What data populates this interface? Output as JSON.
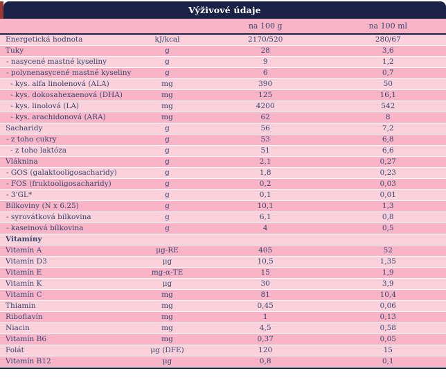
{
  "table": {
    "title": "Výživové údaje",
    "columns": {
      "per100g": "na 100 g",
      "per100ml": "na 100 ml"
    },
    "colors": {
      "navy": "#1a2248",
      "pink_dark": "#f9b4c7",
      "pink_light": "#fbd1db",
      "text": "#35466f",
      "red_edge": "#993832",
      "title_text": "#ffffff"
    },
    "rows": [
      {
        "label": "Energetická hodnota",
        "indent": 0,
        "unit": "kJ/kcal",
        "per100g": "2170/520",
        "per100ml": "280/67"
      },
      {
        "label": "Tuky",
        "indent": 0,
        "unit": "g",
        "per100g": "28",
        "per100ml": "3,6"
      },
      {
        "label": "- nasycené mastné kyseliny",
        "indent": 1,
        "unit": "g",
        "per100g": "9",
        "per100ml": "1,2"
      },
      {
        "label": "- polynenasycené mastné kyseliny",
        "indent": 1,
        "unit": "g",
        "per100g": "6",
        "per100ml": "0,7"
      },
      {
        "label": "- kys. alfa linolenová (ALA)",
        "indent": 2,
        "unit": "mg",
        "per100g": "390",
        "per100ml": "50"
      },
      {
        "label": "- kys. dokosahexaenová (DHA)",
        "indent": 2,
        "unit": "mg",
        "per100g": "125",
        "per100ml": "16,1"
      },
      {
        "label": "- kys. linolová (LA)",
        "indent": 2,
        "unit": "mg",
        "per100g": "4200",
        "per100ml": "542"
      },
      {
        "label": "- kys. arachidonová (ARA)",
        "indent": 2,
        "unit": "mg",
        "per100g": "62",
        "per100ml": "8"
      },
      {
        "label": "Sacharidy",
        "indent": 0,
        "unit": "g",
        "per100g": "56",
        "per100ml": "7,2"
      },
      {
        "label": "- z toho cukry",
        "indent": 1,
        "unit": "g",
        "per100g": "53",
        "per100ml": "6,8"
      },
      {
        "label": "- z toho laktóza",
        "indent": 2,
        "unit": "g",
        "per100g": "51",
        "per100ml": "6,6"
      },
      {
        "label": "Vláknina",
        "indent": 0,
        "unit": "g",
        "per100g": "2,1",
        "per100ml": "0,27"
      },
      {
        "label": "- GOS (galaktooligosacharidy)",
        "indent": 1,
        "unit": "g",
        "per100g": "1,8",
        "per100ml": "0,23"
      },
      {
        "label": "- FOS (fruktooligosacharidy)",
        "indent": 1,
        "unit": "g",
        "per100g": "0,2",
        "per100ml": "0,03"
      },
      {
        "label": "- 3'GL*",
        "indent": 1,
        "unit": "g",
        "per100g": "0,1",
        "per100ml": "0,01"
      },
      {
        "label": "Bílkoviny (N x 6.25)",
        "indent": 0,
        "unit": "g",
        "per100g": "10,1",
        "per100ml": "1,3"
      },
      {
        "label": "- syrovátková bílkovina",
        "indent": 1,
        "unit": "g",
        "per100g": "6,1",
        "per100ml": "0,8"
      },
      {
        "label": "- kaseinová bílkovina",
        "indent": 1,
        "unit": "g",
        "per100g": "4",
        "per100ml": "0,5"
      },
      {
        "label": "Vitamíny",
        "indent": 0,
        "section": true
      },
      {
        "label": "Vitamín A",
        "indent": 0,
        "unit": "μg-RE",
        "per100g": "405",
        "per100ml": "52"
      },
      {
        "label": "Vitamín D3",
        "indent": 0,
        "unit": "μg",
        "per100g": "10,5",
        "per100ml": "1,35"
      },
      {
        "label": "Vitamín E",
        "indent": 0,
        "unit": "mg-α-TE",
        "per100g": "15",
        "per100ml": "1,9"
      },
      {
        "label": "Vitamín K",
        "indent": 0,
        "unit": "μg",
        "per100g": "30",
        "per100ml": "3,9"
      },
      {
        "label": "Vitamín C",
        "indent": 0,
        "unit": "mg",
        "per100g": "81",
        "per100ml": "10,4"
      },
      {
        "label": "Thiamin",
        "indent": 0,
        "unit": "mg",
        "per100g": "0,45",
        "per100ml": "0,06"
      },
      {
        "label": "Riboflavín",
        "indent": 0,
        "unit": "mg",
        "per100g": "1",
        "per100ml": "0,13"
      },
      {
        "label": "Niacin",
        "indent": 0,
        "unit": "mg",
        "per100g": "4,5",
        "per100ml": "0,58"
      },
      {
        "label": "Vitamín B6",
        "indent": 0,
        "unit": "mg",
        "per100g": "0,37",
        "per100ml": "0,05"
      },
      {
        "label": "Folát",
        "indent": 0,
        "unit": "μg (DFE)",
        "per100g": "120",
        "per100ml": "15"
      },
      {
        "label": "Vitamín B12",
        "indent": 0,
        "unit": "μg",
        "per100g": "0,8",
        "per100ml": "0,1"
      }
    ]
  }
}
